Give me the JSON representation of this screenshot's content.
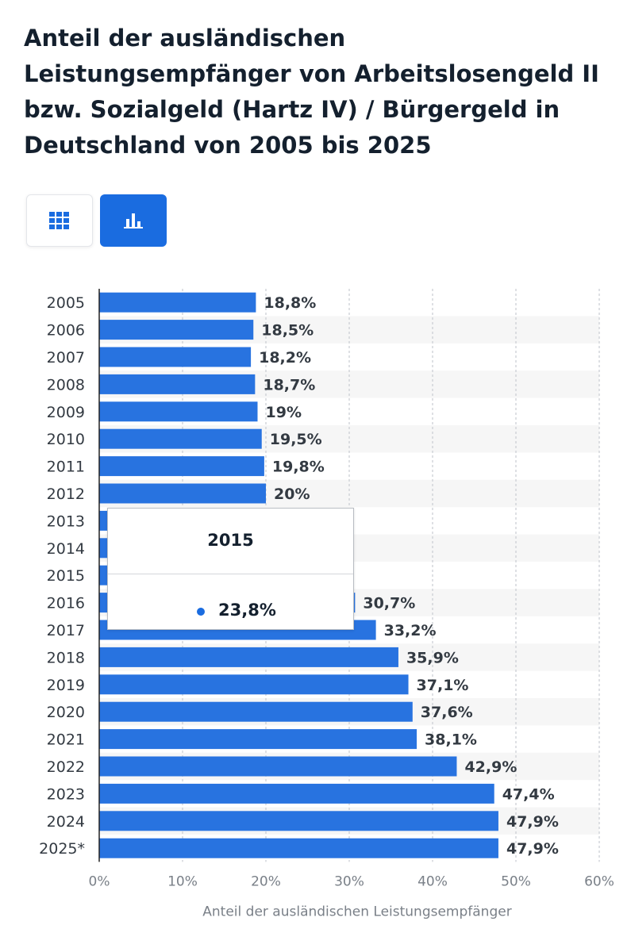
{
  "title": "Anteil der ausländischen Leistungsempfänger von Arbeitslosengeld II bzw. Sozialgeld (Hartz IV) / Bürgergeld in Deutschland von 2005 bis 2025",
  "view_toggle": {
    "table_icon": "grid-table-icon",
    "chart_icon": "bar-chart-icon",
    "active": "chart"
  },
  "colors": {
    "bar": "#2873e0",
    "accent": "#1a6ce0",
    "stripe": "#f6f6f6",
    "grid": "#c9ccd1"
  },
  "tooltip": {
    "year": "2015",
    "value": "23,8%"
  },
  "chart_data": {
    "type": "bar",
    "orientation": "horizontal",
    "categories": [
      "2005",
      "2006",
      "2007",
      "2008",
      "2009",
      "2010",
      "2011",
      "2012",
      "2013",
      "2014",
      "2015",
      "2016",
      "2017",
      "2018",
      "2019",
      "2020",
      "2021",
      "2022",
      "2023",
      "2024",
      "2025*"
    ],
    "values": [
      18.8,
      18.5,
      18.2,
      18.7,
      19,
      19.5,
      19.8,
      20,
      21.5,
      22.5,
      23.8,
      30.7,
      33.2,
      35.9,
      37.1,
      37.6,
      38.1,
      42.9,
      47.4,
      47.9,
      47.9
    ],
    "value_labels": [
      "18,8%",
      "18,5%",
      "18,2%",
      "18,7%",
      "19%",
      "19,5%",
      "19,8%",
      "20%",
      "",
      "",
      "",
      "30,7%",
      "33,2%",
      "35,9%",
      "37,1%",
      "37,6%",
      "38,1%",
      "42,9%",
      "47,4%",
      "47,9%",
      "47,9%"
    ],
    "xlim": [
      0,
      60
    ],
    "xticks": [
      "0%",
      "10%",
      "20%",
      "30%",
      "40%",
      "50%",
      "60%"
    ],
    "xlabel": "Anteil der ausländischen Leistungsempfänger",
    "ylabel": "",
    "grid": true
  }
}
